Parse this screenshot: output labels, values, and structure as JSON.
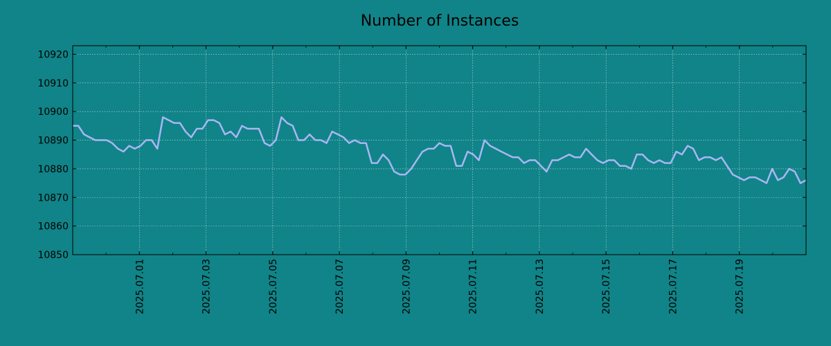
{
  "chart_data": {
    "type": "line",
    "title": "Number of Instances",
    "xlabel": "",
    "ylabel": "",
    "x_start": "2025.06.29",
    "x_end": "2025.07.20",
    "x_ticks": [
      "2025.07.01",
      "2025.07.03",
      "2025.07.05",
      "2025.07.07",
      "2025.07.09",
      "2025.07.11",
      "2025.07.13",
      "2025.07.15",
      "2025.07.17",
      "2025.07.19"
    ],
    "ylim": [
      10850,
      10923
    ],
    "y_ticks": [
      10850,
      10860,
      10870,
      10880,
      10890,
      10900,
      10910,
      10920
    ],
    "grid": true,
    "colors": {
      "background": "#108488",
      "plot_background": "#108488",
      "line": "#a9b6f4",
      "grid": "#bfe0df",
      "axis": "#000000"
    },
    "series": [
      {
        "values": [
          10895,
          10895,
          10892,
          10891,
          10890,
          10890,
          10890,
          10889,
          10887,
          10886,
          10888,
          10887,
          10888,
          10890,
          10890,
          10887,
          10898,
          10897,
          10896,
          10896,
          10893,
          10891,
          10894,
          10894,
          10897,
          10897,
          10896,
          10892,
          10893,
          10891,
          10895,
          10894,
          10894,
          10894,
          10889,
          10888,
          10890,
          10898,
          10896,
          10895,
          10890,
          10890,
          10892,
          10890,
          10890,
          10889,
          10893,
          10892,
          10891,
          10889,
          10890,
          10889,
          10889,
          10882,
          10882,
          10885,
          10883,
          10879,
          10878,
          10878,
          10880,
          10883,
          10886,
          10887,
          10887,
          10889,
          10888,
          10888,
          10881,
          10881,
          10886,
          10885,
          10883,
          10890,
          10888,
          10887,
          10886,
          10885,
          10884,
          10884,
          10882,
          10883,
          10883,
          10881,
          10879,
          10883,
          10883,
          10884,
          10885,
          10884,
          10884,
          10887,
          10885,
          10883,
          10882,
          10883,
          10883,
          10881,
          10881,
          10880,
          10885,
          10885,
          10883,
          10882,
          10883,
          10882,
          10882,
          10886,
          10885,
          10888,
          10887,
          10883,
          10884,
          10884,
          10883,
          10884,
          10881,
          10878,
          10877,
          10876,
          10877,
          10877,
          10876,
          10875,
          10880,
          10876,
          10877,
          10880,
          10879,
          10875,
          10876
        ]
      }
    ]
  }
}
